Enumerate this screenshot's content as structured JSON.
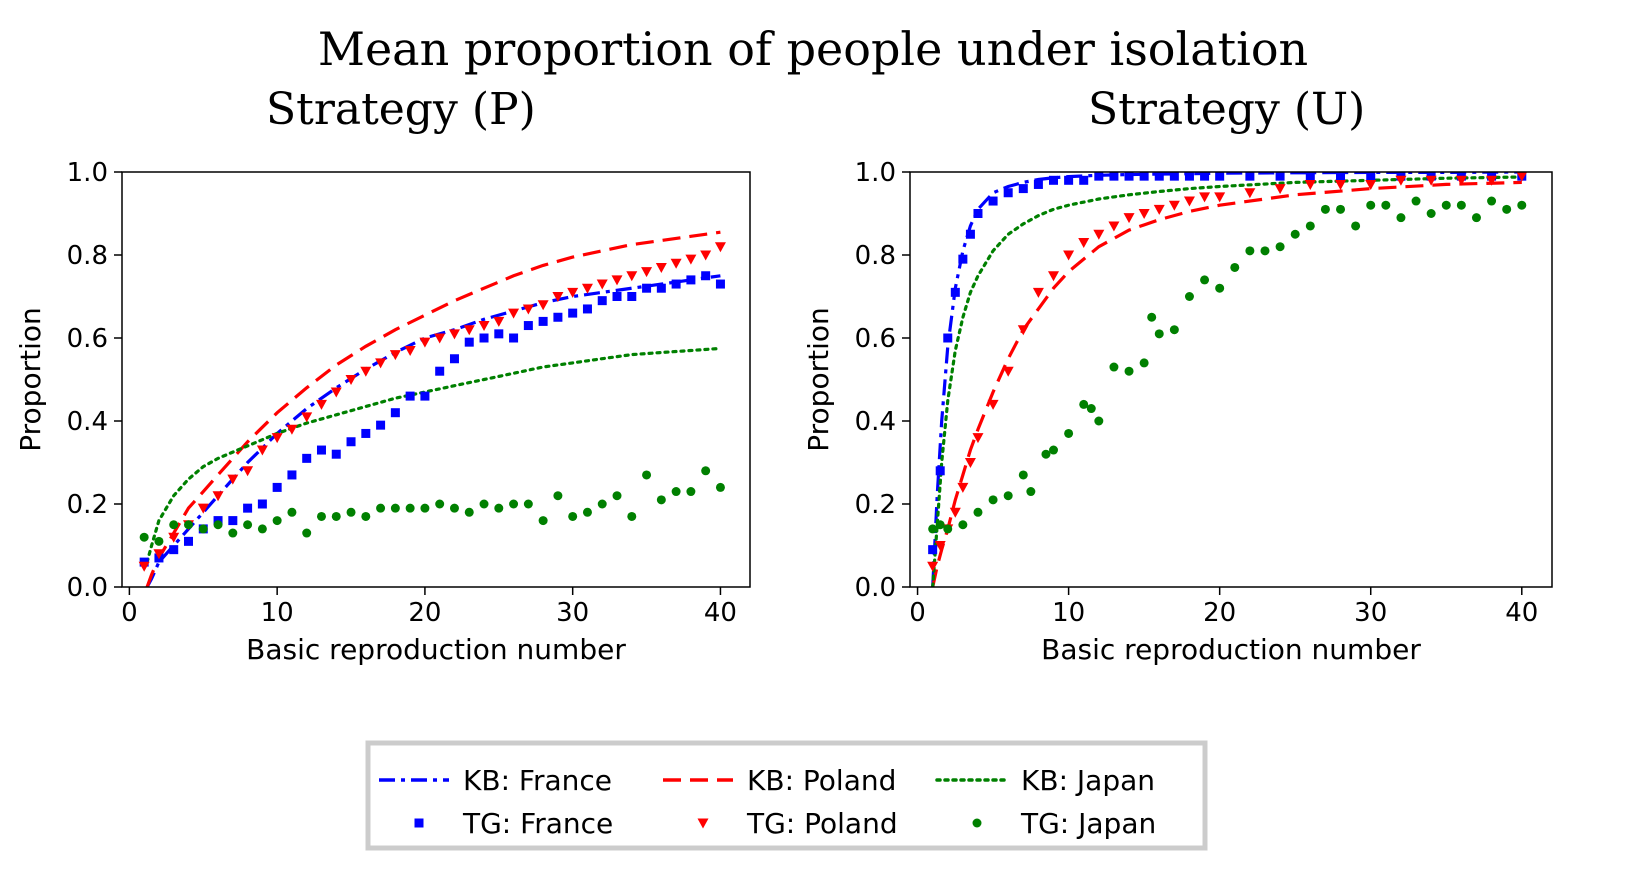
{
  "figure_title": "Mean proportion of people under isolation",
  "chart_data": [
    {
      "type": "line",
      "subtitle": "Strategy (P)",
      "xlabel": "Basic reproduction number",
      "ylabel": "Proportion",
      "xlim": [
        -0.5,
        42
      ],
      "ylim": [
        0,
        1.0
      ],
      "xticks": [
        0,
        10,
        20,
        30,
        40
      ],
      "yticks": [
        0.0,
        0.2,
        0.4,
        0.6,
        0.8,
        1.0
      ],
      "kb_x": [
        1.2,
        1.5,
        2,
        3,
        4,
        5,
        6,
        7,
        8,
        9,
        10,
        12,
        14,
        16,
        18,
        20,
        22,
        24,
        26,
        28,
        30,
        32,
        34,
        36,
        38,
        40
      ],
      "series": [
        {
          "name": "KB: France",
          "color": "#0000ff",
          "style": "dashdot",
          "y": [
            0.0,
            0.02,
            0.06,
            0.1,
            0.14,
            0.18,
            0.22,
            0.26,
            0.3,
            0.335,
            0.37,
            0.43,
            0.48,
            0.525,
            0.565,
            0.6,
            0.62,
            0.645,
            0.665,
            0.685,
            0.7,
            0.71,
            0.72,
            0.73,
            0.74,
            0.75
          ]
        },
        {
          "name": "KB: Poland",
          "color": "#ff0000",
          "style": "dashed",
          "y": [
            0.0,
            0.03,
            0.07,
            0.13,
            0.19,
            0.23,
            0.27,
            0.31,
            0.35,
            0.385,
            0.42,
            0.48,
            0.535,
            0.58,
            0.62,
            0.655,
            0.69,
            0.72,
            0.75,
            0.775,
            0.795,
            0.81,
            0.825,
            0.835,
            0.845,
            0.855
          ]
        },
        {
          "name": "KB: Japan",
          "color": "#008000",
          "style": "dotted",
          "y": [
            0.06,
            0.1,
            0.16,
            0.22,
            0.26,
            0.29,
            0.31,
            0.325,
            0.34,
            0.355,
            0.37,
            0.395,
            0.415,
            0.435,
            0.455,
            0.47,
            0.485,
            0.5,
            0.515,
            0.53,
            0.54,
            0.55,
            0.56,
            0.565,
            0.57,
            0.575
          ]
        }
      ],
      "scatter": [
        {
          "name": "TG: France",
          "color": "#0000ff",
          "marker": "square",
          "x": [
            1,
            2,
            3,
            4,
            5,
            6,
            7,
            8,
            9,
            10,
            11,
            12,
            13,
            14,
            15,
            16,
            17,
            18,
            19,
            20,
            21,
            22,
            23,
            24,
            25,
            26,
            27,
            28,
            29,
            30,
            31,
            32,
            33,
            34,
            35,
            36,
            37,
            38,
            39,
            40
          ],
          "y": [
            0.06,
            0.07,
            0.09,
            0.11,
            0.14,
            0.16,
            0.16,
            0.19,
            0.2,
            0.24,
            0.27,
            0.31,
            0.33,
            0.32,
            0.35,
            0.37,
            0.39,
            0.42,
            0.46,
            0.46,
            0.52,
            0.55,
            0.59,
            0.6,
            0.61,
            0.6,
            0.63,
            0.64,
            0.65,
            0.66,
            0.67,
            0.69,
            0.7,
            0.7,
            0.72,
            0.72,
            0.73,
            0.74,
            0.75,
            0.73
          ]
        },
        {
          "name": "TG: Poland",
          "color": "#ff0000",
          "marker": "triangle",
          "x": [
            1,
            2,
            3,
            4,
            5,
            6,
            7,
            8,
            9,
            10,
            11,
            12,
            13,
            14,
            15,
            16,
            17,
            18,
            19,
            20,
            21,
            22,
            23,
            24,
            25,
            26,
            27,
            28,
            29,
            30,
            31,
            32,
            33,
            34,
            35,
            36,
            37,
            38,
            39,
            40
          ],
          "y": [
            0.05,
            0.08,
            0.12,
            0.15,
            0.19,
            0.22,
            0.26,
            0.28,
            0.33,
            0.36,
            0.38,
            0.41,
            0.44,
            0.47,
            0.5,
            0.52,
            0.54,
            0.56,
            0.57,
            0.59,
            0.6,
            0.61,
            0.62,
            0.63,
            0.64,
            0.66,
            0.67,
            0.68,
            0.7,
            0.71,
            0.72,
            0.73,
            0.74,
            0.75,
            0.76,
            0.77,
            0.78,
            0.79,
            0.8,
            0.82
          ]
        },
        {
          "name": "TG: Japan",
          "color": "#008000",
          "marker": "circle",
          "x": [
            1,
            2,
            3,
            4,
            5,
            6,
            7,
            8,
            9,
            10,
            11,
            12,
            13,
            14,
            15,
            16,
            17,
            18,
            19,
            20,
            21,
            22,
            23,
            24,
            25,
            26,
            27,
            28,
            29,
            30,
            31,
            32,
            33,
            34,
            35,
            36,
            37,
            38,
            39,
            40
          ],
          "y": [
            0.12,
            0.11,
            0.15,
            0.15,
            0.14,
            0.15,
            0.13,
            0.15,
            0.14,
            0.16,
            0.18,
            0.13,
            0.17,
            0.17,
            0.18,
            0.17,
            0.19,
            0.19,
            0.19,
            0.19,
            0.2,
            0.19,
            0.18,
            0.2,
            0.19,
            0.2,
            0.2,
            0.16,
            0.22,
            0.17,
            0.18,
            0.2,
            0.22,
            0.17,
            0.27,
            0.21,
            0.23,
            0.23,
            0.28,
            0.24
          ]
        }
      ]
    },
    {
      "type": "line",
      "subtitle": "Strategy (U)",
      "xlabel": "Basic reproduction number",
      "ylabel": "Proportion",
      "xlim": [
        -0.5,
        42
      ],
      "ylim": [
        0,
        1.0
      ],
      "xticks": [
        0,
        10,
        20,
        30,
        40
      ],
      "yticks": [
        0.0,
        0.2,
        0.4,
        0.6,
        0.8,
        1.0
      ],
      "kb_x": [
        1.0,
        1.3,
        1.6,
        2,
        2.5,
        3,
        3.5,
        4,
        5,
        6,
        7,
        8,
        9,
        10,
        12,
        14,
        16,
        18,
        20,
        25,
        30,
        35,
        40
      ],
      "series": [
        {
          "name": "KB: France",
          "color": "#0000ff",
          "style": "dashdot",
          "y": [
            0.0,
            0.22,
            0.4,
            0.58,
            0.72,
            0.81,
            0.87,
            0.91,
            0.95,
            0.965,
            0.975,
            0.982,
            0.986,
            0.989,
            0.992,
            0.994,
            0.995,
            0.996,
            0.997,
            0.998,
            0.999,
            0.999,
            1.0
          ]
        },
        {
          "name": "KB: Poland",
          "color": "#ff0000",
          "style": "dashed",
          "y": [
            0.0,
            0.05,
            0.09,
            0.14,
            0.21,
            0.27,
            0.33,
            0.38,
            0.47,
            0.55,
            0.62,
            0.67,
            0.72,
            0.76,
            0.82,
            0.86,
            0.885,
            0.905,
            0.92,
            0.945,
            0.96,
            0.97,
            0.975
          ]
        },
        {
          "name": "KB: Japan",
          "color": "#008000",
          "style": "dotted",
          "y": [
            0.0,
            0.15,
            0.3,
            0.45,
            0.57,
            0.65,
            0.71,
            0.75,
            0.81,
            0.85,
            0.875,
            0.895,
            0.91,
            0.92,
            0.935,
            0.945,
            0.953,
            0.96,
            0.965,
            0.975,
            0.98,
            0.985,
            0.988
          ]
        }
      ],
      "scatter": [
        {
          "name": "TG: France",
          "color": "#0000ff",
          "marker": "square",
          "x": [
            1,
            1.5,
            2,
            2.5,
            3,
            3.5,
            4,
            5,
            6,
            7,
            8,
            9,
            10,
            11,
            12,
            13,
            14,
            15,
            16,
            17,
            18,
            19,
            20,
            22,
            24,
            26,
            28,
            30,
            32,
            34,
            36,
            38,
            40
          ],
          "y": [
            0.09,
            0.28,
            0.6,
            0.71,
            0.79,
            0.85,
            0.9,
            0.93,
            0.95,
            0.96,
            0.97,
            0.98,
            0.98,
            0.98,
            0.99,
            0.99,
            0.99,
            0.99,
            0.99,
            0.99,
            0.99,
            0.99,
            0.99,
            0.99,
            0.99,
            0.99,
            0.99,
            0.99,
            0.99,
            0.99,
            0.99,
            0.99,
            0.99
          ]
        },
        {
          "name": "TG: Poland",
          "color": "#ff0000",
          "marker": "triangle",
          "x": [
            1,
            1.5,
            2,
            2.5,
            3,
            3.5,
            4,
            5,
            6,
            7,
            8,
            9,
            10,
            11,
            12,
            13,
            14,
            15,
            16,
            17,
            18,
            19,
            20,
            22,
            24,
            26,
            28,
            30,
            32,
            34,
            36,
            38,
            40
          ],
          "y": [
            0.05,
            0.1,
            0.14,
            0.18,
            0.24,
            0.3,
            0.36,
            0.44,
            0.52,
            0.62,
            0.71,
            0.75,
            0.8,
            0.83,
            0.85,
            0.87,
            0.89,
            0.9,
            0.91,
            0.92,
            0.93,
            0.94,
            0.94,
            0.95,
            0.96,
            0.97,
            0.97,
            0.97,
            0.98,
            0.98,
            0.98,
            0.98,
            0.99
          ]
        },
        {
          "name": "TG: Japan",
          "color": "#008000",
          "marker": "circle",
          "x": [
            1,
            1.5,
            2,
            3,
            4,
            5,
            6,
            7,
            7.5,
            8.5,
            9,
            10,
            11,
            11.5,
            12,
            13,
            14,
            15,
            15.5,
            16,
            17,
            18,
            19,
            20,
            21,
            22,
            23,
            24,
            25,
            26,
            27,
            28,
            29,
            30,
            31,
            32,
            33,
            34,
            35,
            36,
            37,
            38,
            39,
            40
          ],
          "y": [
            0.14,
            0.15,
            0.14,
            0.15,
            0.18,
            0.21,
            0.22,
            0.27,
            0.23,
            0.32,
            0.33,
            0.37,
            0.44,
            0.43,
            0.4,
            0.53,
            0.52,
            0.54,
            0.65,
            0.61,
            0.62,
            0.7,
            0.74,
            0.72,
            0.77,
            0.81,
            0.81,
            0.82,
            0.85,
            0.87,
            0.91,
            0.91,
            0.87,
            0.92,
            0.92,
            0.89,
            0.93,
            0.9,
            0.92,
            0.92,
            0.89,
            0.93,
            0.91,
            0.92
          ]
        }
      ]
    }
  ],
  "legend": {
    "placement": "bottom-center",
    "entries": [
      {
        "label": "KB: France",
        "kind": "line",
        "style": "dashdot",
        "color": "#0000ff"
      },
      {
        "label": "KB: Poland",
        "kind": "line",
        "style": "dashed",
        "color": "#ff0000"
      },
      {
        "label": "KB: Japan",
        "kind": "line",
        "style": "dotted",
        "color": "#008000"
      },
      {
        "label": "TG: France",
        "kind": "marker",
        "marker": "square",
        "color": "#0000ff"
      },
      {
        "label": "TG: Poland",
        "kind": "marker",
        "marker": "triangle",
        "color": "#ff0000"
      },
      {
        "label": "TG: Japan",
        "kind": "marker",
        "marker": "circle",
        "color": "#008000"
      }
    ]
  }
}
